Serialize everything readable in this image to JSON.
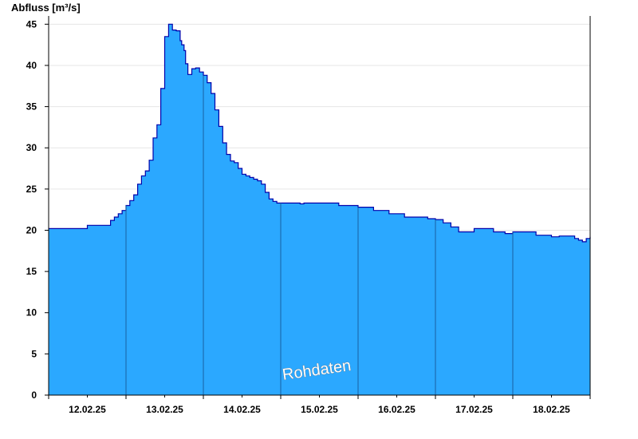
{
  "chart_data": {
    "type": "area",
    "ylabel": "Abfluss [m³/s]",
    "ylim": [
      0,
      46
    ],
    "yticks": [
      0,
      5,
      10,
      15,
      20,
      25,
      30,
      35,
      40,
      45
    ],
    "xlim": [
      0,
      7
    ],
    "xtick_labels": [
      "12.02.25",
      "13.02.25",
      "14.02.25",
      "15.02.25",
      "16.02.25",
      "17.02.25",
      "18.02.25"
    ],
    "day_boundaries": [
      1,
      2,
      3,
      4,
      5,
      6
    ],
    "watermark": "Rohdaten",
    "colors": {
      "fill": "#2ba8ff",
      "line": "#0000aa",
      "divider": "#1a5fa0",
      "grid": "#e6e6e6"
    },
    "grid": true,
    "x_unit": "days since 12.02.25 00:00",
    "series": [
      {
        "name": "Abfluss",
        "x": [
          0,
          0.47,
          0.5,
          0.75,
          0.8,
          0.85,
          0.9,
          0.95,
          1.0,
          1.05,
          1.1,
          1.15,
          1.2,
          1.25,
          1.3,
          1.35,
          1.4,
          1.45,
          1.5,
          1.55,
          1.6,
          1.65,
          1.7,
          1.72,
          1.75,
          1.77,
          1.8,
          1.85,
          1.9,
          1.95,
          2.0,
          2.05,
          2.1,
          2.15,
          2.2,
          2.25,
          2.3,
          2.35,
          2.4,
          2.45,
          2.5,
          2.55,
          2.6,
          2.65,
          2.7,
          2.75,
          2.8,
          2.85,
          2.9,
          2.95,
          3.0,
          3.05,
          3.1,
          3.15,
          3.2,
          3.25,
          3.3,
          3.5,
          3.75,
          4.0,
          4.2,
          4.4,
          4.6,
          4.9,
          5.0,
          5.1,
          5.2,
          5.3,
          5.5,
          5.7,
          5.75,
          5.9,
          6.0,
          6.1,
          6.3,
          6.5,
          6.6,
          6.8,
          6.85,
          6.9,
          6.95,
          7.0
        ],
        "y": [
          20.2,
          20.2,
          20.6,
          20.6,
          21.2,
          21.6,
          22.0,
          22.4,
          23.0,
          23.6,
          24.3,
          25.6,
          26.6,
          27.2,
          28.5,
          31.2,
          32.8,
          37.2,
          43.5,
          45.0,
          44.3,
          44.2,
          43.0,
          42.5,
          41.8,
          40.2,
          38.9,
          39.6,
          39.7,
          39.2,
          38.8,
          37.9,
          36.6,
          34.6,
          32.6,
          30.6,
          29.2,
          28.4,
          28.2,
          27.5,
          26.8,
          26.6,
          26.4,
          26.2,
          26.0,
          25.6,
          24.6,
          23.8,
          23.5,
          23.3,
          23.3,
          23.3,
          23.3,
          23.3,
          23.3,
          23.2,
          23.3,
          23.3,
          23.0,
          22.8,
          22.4,
          22.0,
          21.6,
          21.4,
          21.3,
          20.9,
          20.4,
          19.8,
          20.2,
          20.2,
          19.8,
          19.6,
          19.8,
          19.8,
          19.4,
          19.2,
          19.3,
          19.0,
          18.8,
          18.6,
          19.0,
          19.2
        ]
      }
    ]
  }
}
